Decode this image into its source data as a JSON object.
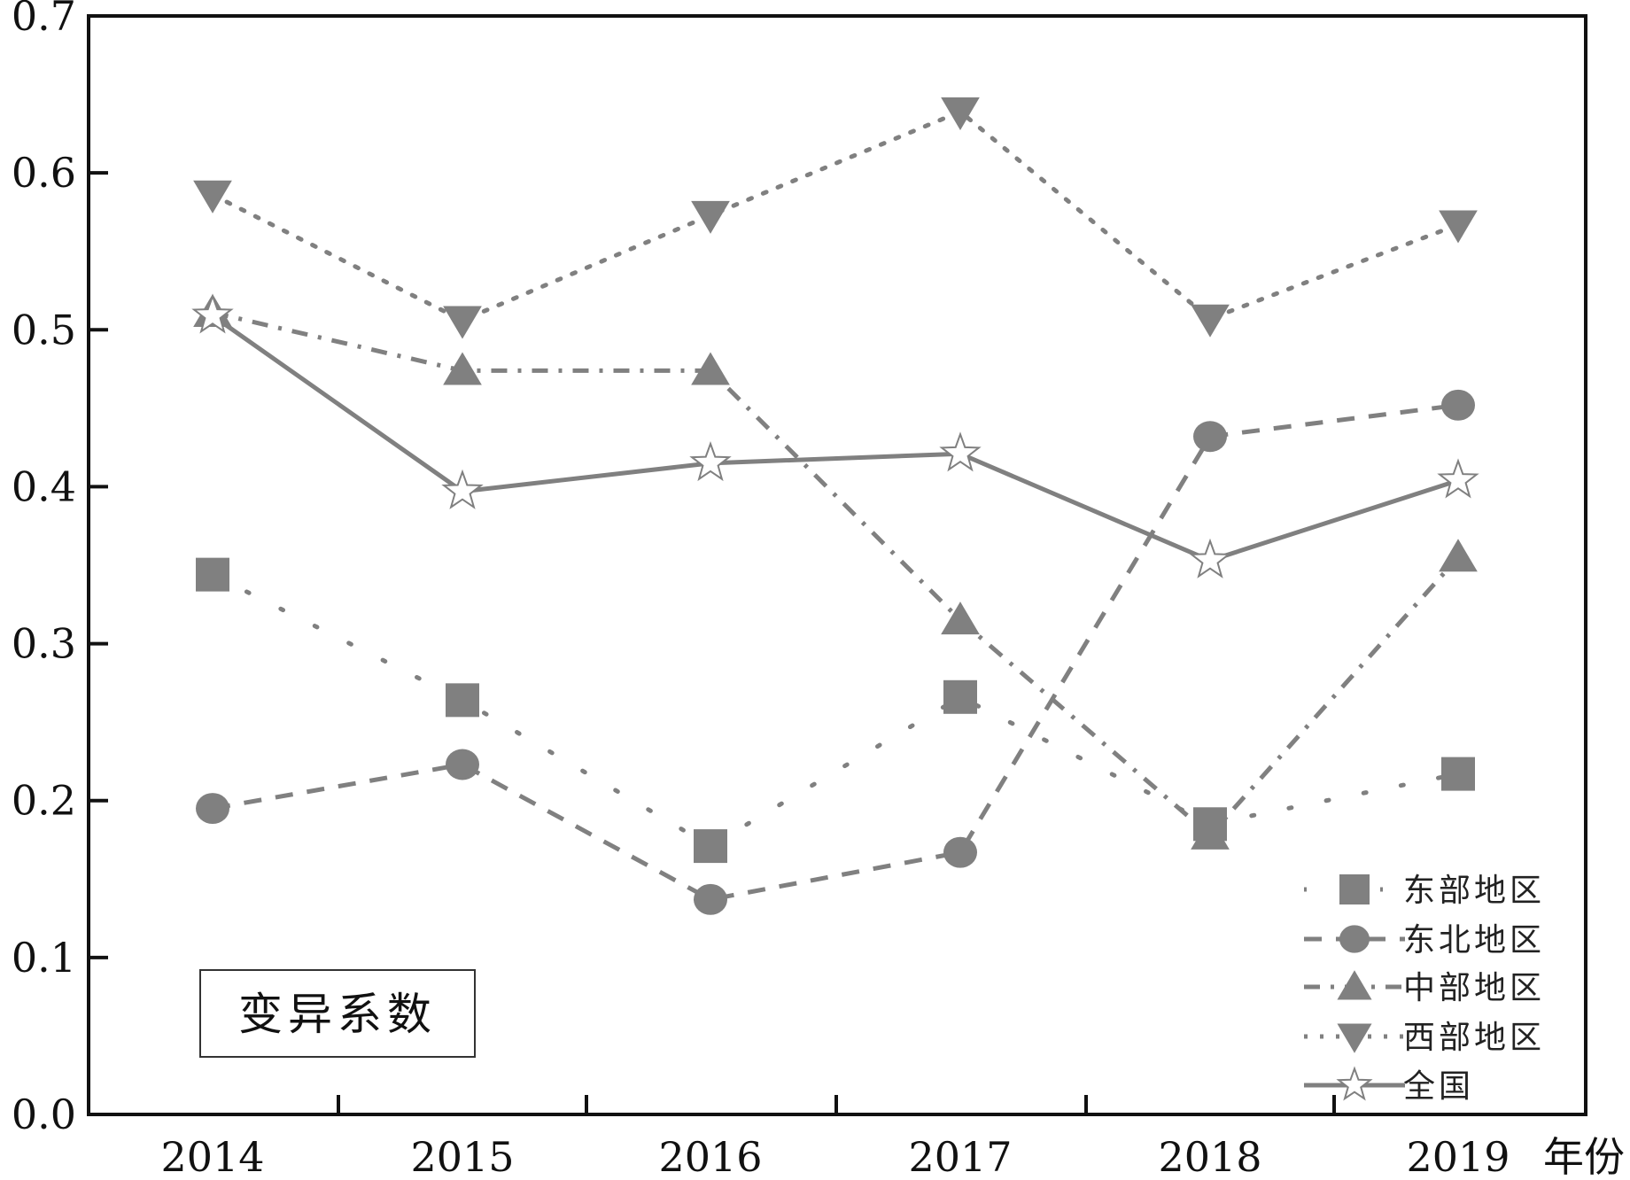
{
  "chart_data": {
    "type": "line",
    "title": "",
    "xlabel": "年份",
    "ylabel": "",
    "categories": [
      "2014",
      "2015",
      "2016",
      "2017",
      "2018",
      "2019"
    ],
    "ylim": [
      0.0,
      0.7
    ],
    "yticks": [
      "0.0",
      "0.1",
      "0.2",
      "0.3",
      "0.4",
      "0.5",
      "0.6",
      "0.7"
    ],
    "grid": false,
    "legend_position": "bottom-right",
    "annotation": "变异系数",
    "series": [
      {
        "name": "东部地区",
        "marker": "square",
        "dash": "dot-sparse",
        "values": [
          0.344,
          0.264,
          0.171,
          0.266,
          0.185,
          0.217
        ]
      },
      {
        "name": "东北地区",
        "marker": "circle",
        "dash": "dash",
        "values": [
          0.195,
          0.223,
          0.137,
          0.167,
          0.432,
          0.452
        ]
      },
      {
        "name": "中部地区",
        "marker": "triangle-up",
        "dash": "dash-dot",
        "values": [
          0.511,
          0.474,
          0.474,
          0.315,
          0.178,
          0.355
        ]
      },
      {
        "name": "西部地区",
        "marker": "triangle-down",
        "dash": "dot",
        "values": [
          0.586,
          0.506,
          0.573,
          0.639,
          0.507,
          0.567
        ]
      },
      {
        "name": "全国",
        "marker": "star",
        "dash": "solid",
        "values": [
          0.509,
          0.397,
          0.415,
          0.421,
          0.353,
          0.404
        ]
      }
    ],
    "colors": {
      "series": "#808080",
      "axis": "#111111"
    }
  }
}
